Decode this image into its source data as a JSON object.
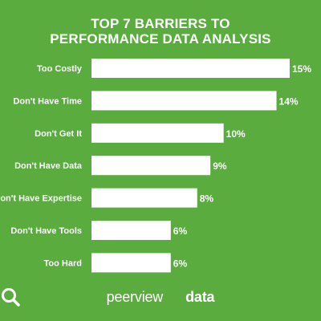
{
  "chart_data": {
    "type": "bar",
    "orientation": "horizontal",
    "title_lines": [
      "TOP 7 BARRIERS TO",
      "PERFORMANCE DATA ANALYSIS"
    ],
    "categories": [
      "Too Costly",
      "Don't Have Time",
      "Don't Get It",
      "Don't Have Data",
      "Don't Have Expertise",
      "Don't Have Tools",
      "Too Hard"
    ],
    "values": [
      15,
      14,
      10,
      9,
      8,
      6,
      6
    ],
    "value_labels": [
      "15%",
      "14%",
      "10%",
      "9%",
      "8%",
      "6%",
      "6%"
    ],
    "unit": "%",
    "xlim": [
      0,
      15
    ],
    "grid": false,
    "bar_color": "#ffffff",
    "label_color": "#ffffff"
  },
  "branding": {
    "text_left": "peerview",
    "text_right": "data",
    "icon": "magnifier-icon"
  },
  "colors": {
    "background": "#5aac3f",
    "text": "#ffffff"
  }
}
